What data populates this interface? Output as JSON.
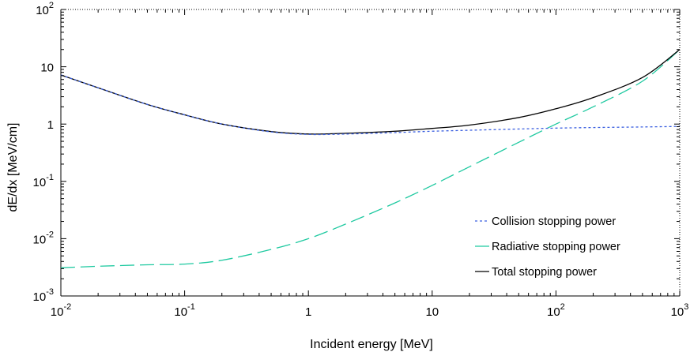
{
  "chart_data": {
    "type": "line",
    "xlabel": "Incident energy [MeV]",
    "ylabel": "dE/dx [MeV/cm]",
    "xscale": "log",
    "yscale": "log",
    "xlim": [
      0.01,
      1000
    ],
    "ylim": [
      0.001,
      100
    ],
    "x_ticks": [
      {
        "value": 0.01,
        "base": "10",
        "exp": "-2"
      },
      {
        "value": 0.1,
        "base": "10",
        "exp": "-1"
      },
      {
        "value": 1,
        "base": "1",
        "exp": ""
      },
      {
        "value": 10,
        "base": "10",
        "exp": ""
      },
      {
        "value": 100,
        "base": "10",
        "exp": "2"
      },
      {
        "value": 1000,
        "base": "10",
        "exp": "3"
      }
    ],
    "y_ticks": [
      {
        "value": 0.001,
        "base": "10",
        "exp": "-3"
      },
      {
        "value": 0.01,
        "base": "10",
        "exp": "-2"
      },
      {
        "value": 0.1,
        "base": "10",
        "exp": "-1"
      },
      {
        "value": 1,
        "base": "1",
        "exp": ""
      },
      {
        "value": 10,
        "base": "10",
        "exp": ""
      },
      {
        "value": 100,
        "base": "10",
        "exp": "2"
      }
    ],
    "grid": false,
    "legend_position": "bottom-right",
    "series": [
      {
        "name": "Collision stopping power",
        "color": "#3a5fe0",
        "style": "dotted",
        "x": [
          0.01,
          0.02,
          0.05,
          0.1,
          0.2,
          0.5,
          1,
          2,
          5,
          10,
          20,
          50,
          100,
          200,
          500,
          1000
        ],
        "y": [
          7.2,
          4.3,
          2.2,
          1.45,
          1.0,
          0.73,
          0.66,
          0.67,
          0.71,
          0.75,
          0.78,
          0.82,
          0.85,
          0.87,
          0.89,
          0.91
        ]
      },
      {
        "name": "Radiative stopping power",
        "color": "#1ec9a0",
        "style": "long-dash",
        "x": [
          0.01,
          0.02,
          0.05,
          0.1,
          0.2,
          0.5,
          1,
          2,
          5,
          10,
          20,
          50,
          100,
          200,
          500,
          1000
        ],
        "y": [
          0.0031,
          0.0033,
          0.0035,
          0.0036,
          0.0042,
          0.0065,
          0.01,
          0.018,
          0.042,
          0.085,
          0.18,
          0.48,
          1.0,
          2.0,
          5.6,
          20
        ]
      },
      {
        "name": "Total stopping power",
        "color": "#000000",
        "style": "solid",
        "x": [
          0.01,
          0.02,
          0.05,
          0.1,
          0.2,
          0.5,
          1,
          2,
          5,
          10,
          20,
          50,
          100,
          200,
          500,
          1000
        ],
        "y": [
          7.2,
          4.3,
          2.2,
          1.45,
          1.0,
          0.74,
          0.67,
          0.69,
          0.75,
          0.84,
          0.96,
          1.3,
          1.85,
          2.9,
          6.5,
          20
        ]
      }
    ]
  }
}
